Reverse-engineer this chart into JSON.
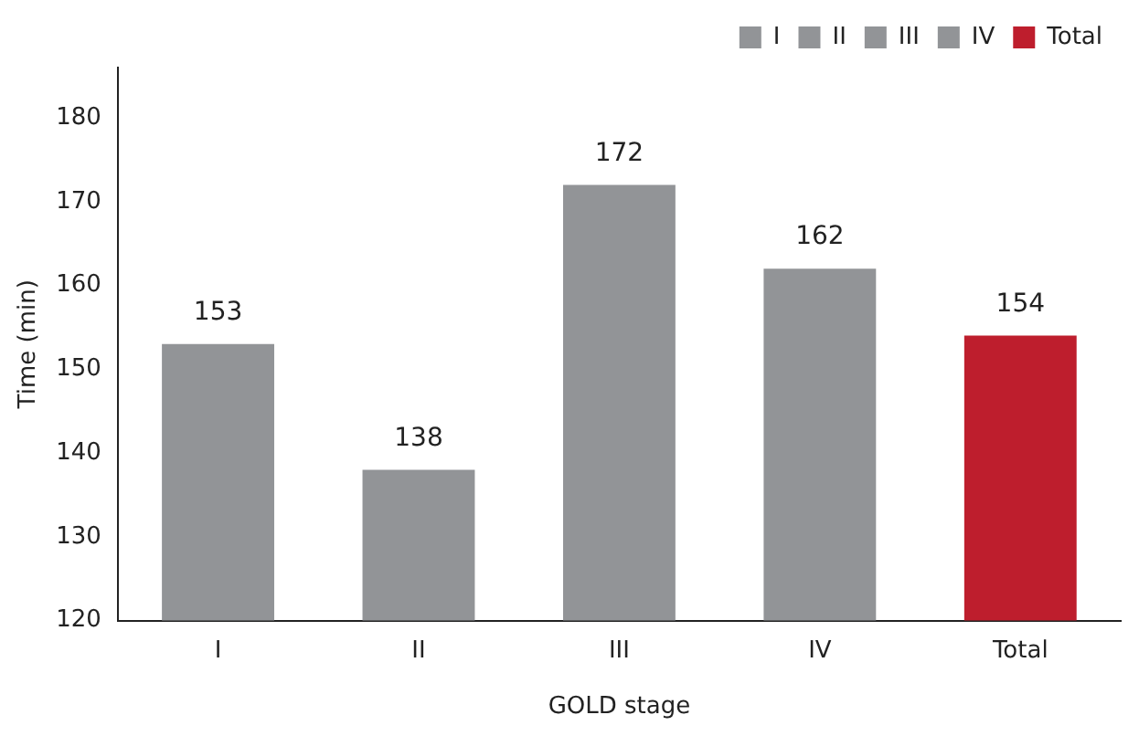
{
  "chart_data": {
    "type": "bar",
    "xlabel": "GOLD stage",
    "ylabel": "Time (min)",
    "categories": [
      "I",
      "II",
      "III",
      "IV",
      "Total"
    ],
    "series": [
      {
        "name": "I",
        "color": "#929497",
        "values": [
          153,
          null,
          null,
          null,
          null
        ]
      },
      {
        "name": "II",
        "color": "#929497",
        "values": [
          null,
          138,
          null,
          null,
          null
        ]
      },
      {
        "name": "III",
        "color": "#929497",
        "values": [
          null,
          null,
          172,
          null,
          null
        ]
      },
      {
        "name": "IV",
        "color": "#929497",
        "values": [
          null,
          null,
          null,
          162,
          null
        ]
      },
      {
        "name": "Total",
        "color": "#be1e2d",
        "values": [
          null,
          null,
          null,
          null,
          154
        ]
      }
    ],
    "ylim": [
      120,
      186
    ],
    "yticks": [
      120,
      130,
      140,
      150,
      160,
      170,
      180
    ],
    "data_labels": true,
    "legend": "top right",
    "grid": false
  }
}
